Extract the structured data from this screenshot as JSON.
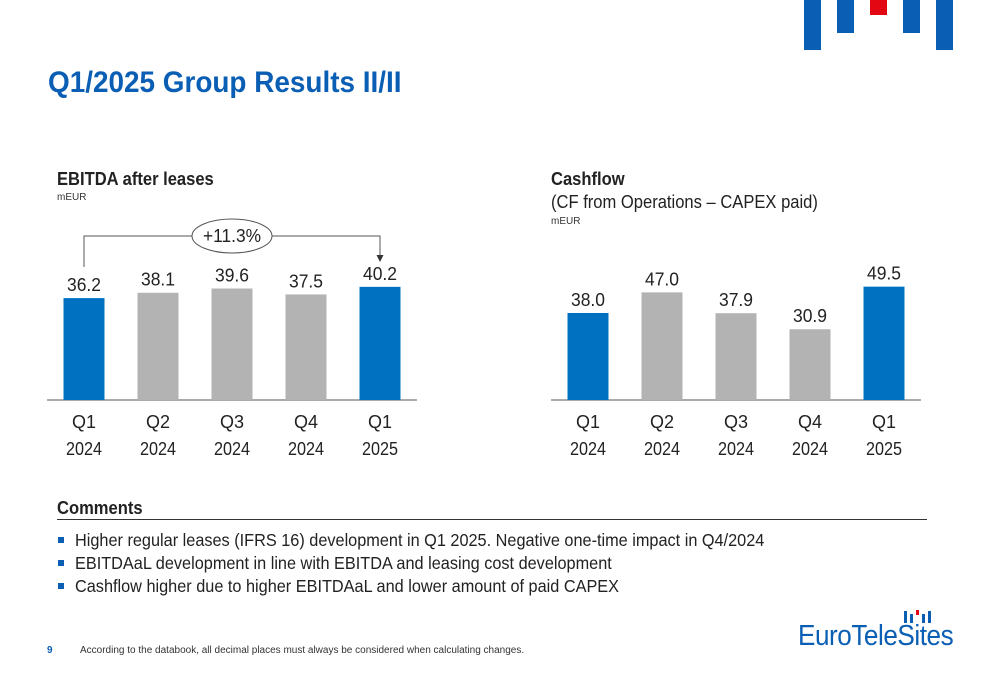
{
  "page": {
    "title": "Q1/2025 Group Results II/II",
    "page_number": "9",
    "footnote": "According to the databook, all decimal places must always be considered when calculating changes.",
    "logo_text": "EuroTeleSites",
    "colors": {
      "brand_blue": "#0a5fb4",
      "highlight_blue": "#0070c0",
      "neutral_gray": "#b3b3b3",
      "accent_red": "#e30613"
    }
  },
  "comments": {
    "heading": "Comments",
    "items": [
      "Higher regular leases (IFRS 16) development in Q1 2025. Negative one-time impact in Q4/2024",
      "EBITDAaL development in line with EBITDA and leasing cost development",
      "Cashflow higher due to higher EBITDAaL and lower amount of paid CAPEX"
    ]
  },
  "chart_data": [
    {
      "type": "bar",
      "title": "EBITDA after leases",
      "subtitle": "",
      "unit": "mEUR",
      "categories": [
        [
          "Q1",
          "2024"
        ],
        [
          "Q2",
          "2024"
        ],
        [
          "Q3",
          "2024"
        ],
        [
          "Q4",
          "2024"
        ],
        [
          "Q1",
          "2025"
        ]
      ],
      "values": [
        36.2,
        38.1,
        39.6,
        37.5,
        40.2
      ],
      "data_labels": [
        "36.2",
        "38.1",
        "39.6",
        "37.5",
        "40.2"
      ],
      "bar_colors": [
        "#0070c0",
        "#b3b3b3",
        "#b3b3b3",
        "#b3b3b3",
        "#0070c0"
      ],
      "annotation": {
        "text": "+11.3%",
        "from_index": 0,
        "to_index": 4
      }
    },
    {
      "type": "bar",
      "title": "Cashflow",
      "subtitle": "(CF from Operations – CAPEX paid)",
      "unit": "mEUR",
      "categories": [
        [
          "Q1",
          "2024"
        ],
        [
          "Q2",
          "2024"
        ],
        [
          "Q3",
          "2024"
        ],
        [
          "Q4",
          "2024"
        ],
        [
          "Q1",
          "2025"
        ]
      ],
      "values": [
        38.0,
        47.0,
        37.9,
        30.9,
        49.5
      ],
      "data_labels": [
        "38.0",
        "47.0",
        "37.9",
        "30.9",
        "49.5"
      ],
      "bar_colors": [
        "#0070c0",
        "#b3b3b3",
        "#b3b3b3",
        "#b3b3b3",
        "#0070c0"
      ]
    }
  ]
}
